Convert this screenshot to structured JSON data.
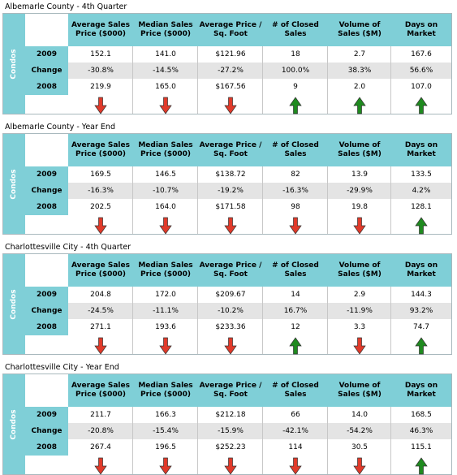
{
  "colors": {
    "header_bg": "#7fcfd7",
    "alt_row": "#e4e4e4",
    "up": "#1f8a1f",
    "down": "#e03a2a"
  },
  "headers": [
    "Average Sales Price ($000)",
    "Median Sales Price ($000)",
    "Average Price / Sq. Foot",
    "# of Closed Sales",
    "Volume of Sales ($M)",
    "Days on Market"
  ],
  "side_label": "Condos",
  "row_labels": [
    "2009",
    "Change",
    "2008"
  ],
  "sections": [
    {
      "title": "Albemarle County - 4th Quarter",
      "rows": [
        [
          "152.1",
          "141.0",
          "$121.96",
          "18",
          "2.7",
          "167.6"
        ],
        [
          "-30.8%",
          "-14.5%",
          "-27.2%",
          "100.0%",
          "38.3%",
          "56.6%"
        ],
        [
          "219.9",
          "165.0",
          "$167.56",
          "9",
          "2.0",
          "107.0"
        ]
      ],
      "arrows": [
        "down-arrow-icon",
        "down-arrow-icon",
        "down-arrow-icon",
        "up-arrow-icon",
        "up-arrow-icon",
        "up-arrow-icon"
      ]
    },
    {
      "title": "Albemarle County - Year End",
      "rows": [
        [
          "169.5",
          "146.5",
          "$138.72",
          "82",
          "13.9",
          "133.5"
        ],
        [
          "-16.3%",
          "-10.7%",
          "-19.2%",
          "-16.3%",
          "-29.9%",
          "4.2%"
        ],
        [
          "202.5",
          "164.0",
          "$171.58",
          "98",
          "19.8",
          "128.1"
        ]
      ],
      "arrows": [
        "down-arrow-icon",
        "down-arrow-icon",
        "down-arrow-icon",
        "down-arrow-icon",
        "down-arrow-icon",
        "up-arrow-icon"
      ]
    },
    {
      "title": "Charlottesville City - 4th Quarter",
      "rows": [
        [
          "204.8",
          "172.0",
          "$209.67",
          "14",
          "2.9",
          "144.3"
        ],
        [
          "-24.5%",
          "-11.1%",
          "-10.2%",
          "16.7%",
          "-11.9%",
          "93.2%"
        ],
        [
          "271.1",
          "193.6",
          "$233.36",
          "12",
          "3.3",
          "74.7"
        ]
      ],
      "arrows": [
        "down-arrow-icon",
        "down-arrow-icon",
        "down-arrow-icon",
        "up-arrow-icon",
        "down-arrow-icon",
        "up-arrow-icon"
      ]
    },
    {
      "title": "Charlottesville City - Year End",
      "rows": [
        [
          "211.7",
          "166.3",
          "$212.18",
          "66",
          "14.0",
          "168.5"
        ],
        [
          "-20.8%",
          "-15.4%",
          "-15.9%",
          "-42.1%",
          "-54.2%",
          "46.3%"
        ],
        [
          "267.4",
          "196.5",
          "$252.23",
          "114",
          "30.5",
          "115.1"
        ]
      ],
      "arrows": [
        "down-arrow-icon",
        "down-arrow-icon",
        "down-arrow-icon",
        "down-arrow-icon",
        "down-arrow-icon",
        "up-arrow-icon"
      ]
    }
  ]
}
